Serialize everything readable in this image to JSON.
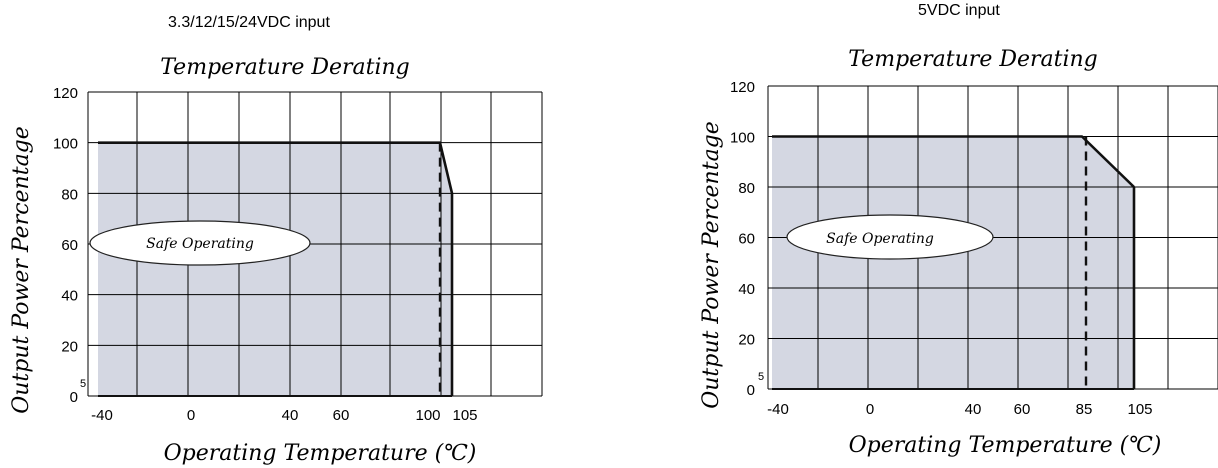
{
  "chart_data": [
    {
      "type": "area",
      "heading": "3.3/12/15/24VDC input",
      "title": "Temperature Derating",
      "xlabel": "Operating Temperature (℃)",
      "ylabel": "Output Power Percentage",
      "x_tick_labels": [
        "-40",
        "0",
        "40",
        "60",
        "100",
        "105"
      ],
      "y_tick_labels": [
        "120",
        "100",
        "80",
        "60",
        "40",
        "20",
        "0"
      ],
      "y_minor_label": "5",
      "annotation": "Safe Operating",
      "series": [
        {
          "x": [
            "-40",
            "100",
            "105"
          ],
          "values": [
            100,
            100,
            80
          ]
        }
      ],
      "dashed_marker_x": "100",
      "grid": true
    },
    {
      "type": "area",
      "heading": "5VDC input",
      "title": "Temperature Derating",
      "xlabel": "Operating Temperature (℃)",
      "ylabel": "Output Power Percentage",
      "x_tick_labels": [
        "-40",
        "0",
        "40",
        "60",
        "85",
        "105"
      ],
      "y_tick_labels": [
        "120",
        "100",
        "80",
        "60",
        "40",
        "20",
        "0"
      ],
      "y_minor_label": "5",
      "annotation": "Safe Operating",
      "series": [
        {
          "x": [
            "-40",
            "85",
            "105"
          ],
          "values": [
            100,
            100,
            80
          ]
        }
      ],
      "dashed_marker_x": "85",
      "grid": true
    }
  ]
}
